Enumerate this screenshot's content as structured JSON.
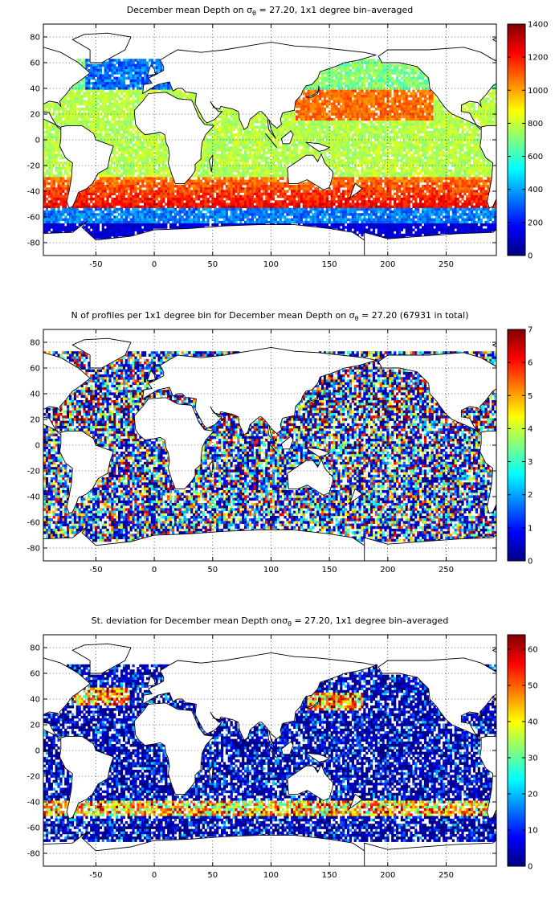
{
  "chart_data": [
    {
      "type": "heatmap",
      "title": {
        "pre": "December mean Depth on ",
        "sym": "σ",
        "sub": "θ",
        "post": " = 27.20, 1x1 degree bin–averaged"
      },
      "xlim": [
        -95,
        293
      ],
      "ylim": [
        -90,
        90
      ],
      "xticks": [
        -50,
        0,
        50,
        100,
        150,
        200,
        250
      ],
      "yticks": [
        80,
        60,
        40,
        20,
        0,
        -20,
        -40,
        -60,
        -80
      ],
      "grid": "dotted",
      "colorbar": {
        "min": 0,
        "max": 1400,
        "ticks": [
          0,
          200,
          400,
          600,
          800,
          1000,
          1200,
          1400
        ]
      },
      "pattern": "depth"
    },
    {
      "type": "heatmap",
      "title": {
        "pre": "N of profiles per 1x1 degree bin for December mean Depth on ",
        "sym": "σ",
        "sub": "θ",
        "post": " = 27.20 (67931 in total)"
      },
      "xlim": [
        -95,
        293
      ],
      "ylim": [
        -90,
        90
      ],
      "xticks": [
        -50,
        0,
        50,
        100,
        150,
        200,
        250
      ],
      "yticks": [
        80,
        60,
        40,
        20,
        0,
        -20,
        -40,
        -60,
        -80
      ],
      "grid": "dotted",
      "colorbar": {
        "min": 0,
        "max": 7,
        "ticks": [
          0,
          1,
          2,
          3,
          4,
          5,
          6,
          7
        ]
      },
      "pattern": "count"
    },
    {
      "type": "heatmap",
      "title": {
        "pre": "St. deviation for December mean Depth on",
        "sym": "σ",
        "sub": "θ",
        "post": " = 27.20, 1x1 degree bin–averaged"
      },
      "xlim": [
        -95,
        293
      ],
      "ylim": [
        -90,
        90
      ],
      "xticks": [
        -50,
        0,
        50,
        100,
        150,
        200,
        250
      ],
      "yticks": [
        80,
        60,
        40,
        20,
        0,
        -20,
        -40,
        -60,
        -80
      ],
      "grid": "dotted",
      "colorbar": {
        "min": 0,
        "max": 64,
        "ticks": [
          0,
          10,
          20,
          30,
          40,
          50,
          60
        ]
      },
      "pattern": "std"
    }
  ]
}
